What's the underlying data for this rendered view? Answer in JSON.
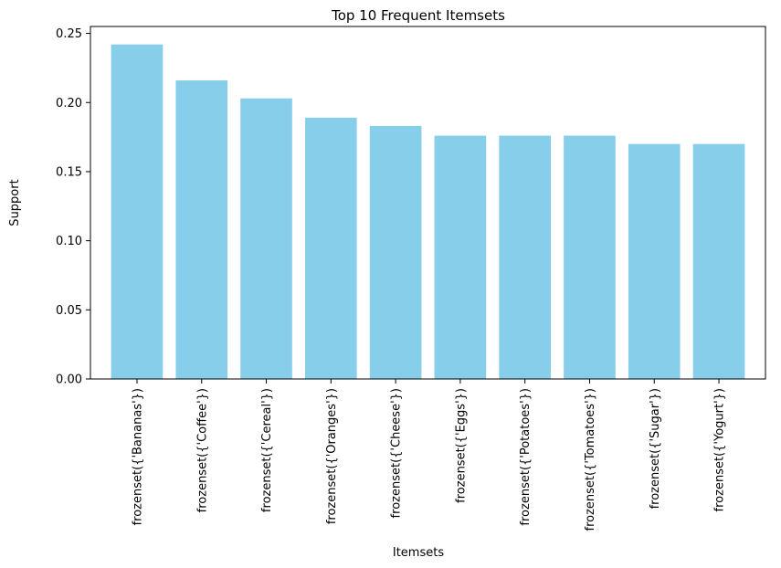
{
  "chart_data": {
    "type": "bar",
    "title": "Top 10 Frequent Itemsets",
    "xlabel": "Itemsets",
    "ylabel": "Support",
    "categories": [
      "frozenset({'Bananas'})",
      "frozenset({'Coffee'})",
      "frozenset({'Cereal'})",
      "frozenset({'Oranges'})",
      "frozenset({'Cheese'})",
      "frozenset({'Eggs'})",
      "frozenset({'Potatoes'})",
      "frozenset({'Tomatoes'})",
      "frozenset({'Sugar'})",
      "frozenset({'Yogurt'})"
    ],
    "values": [
      0.242,
      0.216,
      0.203,
      0.189,
      0.183,
      0.176,
      0.176,
      0.176,
      0.17,
      0.17
    ],
    "ylim": [
      0,
      0.255
    ],
    "yticks": [
      0.0,
      0.05,
      0.1,
      0.15,
      0.2,
      0.25
    ],
    "ytick_labels": [
      "0.00",
      "0.05",
      "0.10",
      "0.15",
      "0.20",
      "0.25"
    ],
    "bar_color": "#87ceeb",
    "grid": false,
    "legend": "none"
  }
}
